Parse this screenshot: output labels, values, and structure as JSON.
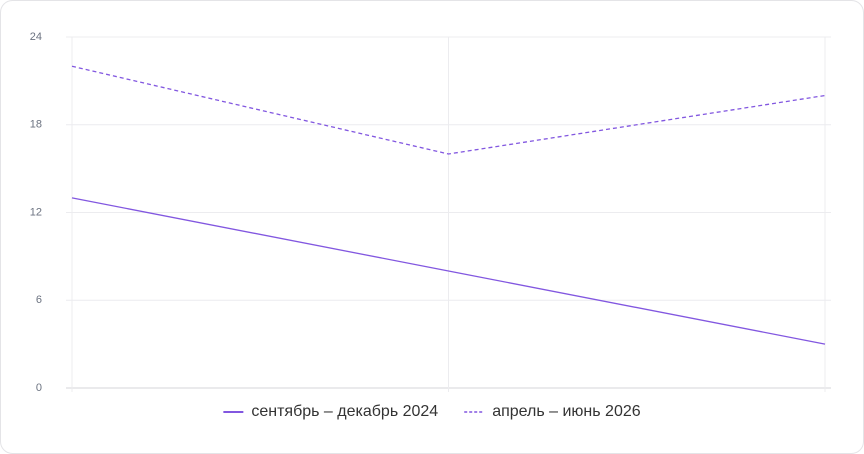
{
  "chart_data": {
    "type": "line",
    "categories": [
      null,
      null,
      null
    ],
    "series": [
      {
        "name": "сентябрь – декабрь 2024",
        "color": "#8257e0",
        "line_style": "solid",
        "values": [
          13,
          8,
          3
        ]
      },
      {
        "name": "апрель – июнь 2026",
        "color": "#8257e0",
        "line_style": "dashed",
        "values": [
          22,
          16,
          20
        ]
      }
    ],
    "ylim": [
      0,
      24
    ],
    "yticks": [
      0,
      6,
      12,
      18,
      24
    ],
    "grid": true,
    "legend": "bottom"
  }
}
